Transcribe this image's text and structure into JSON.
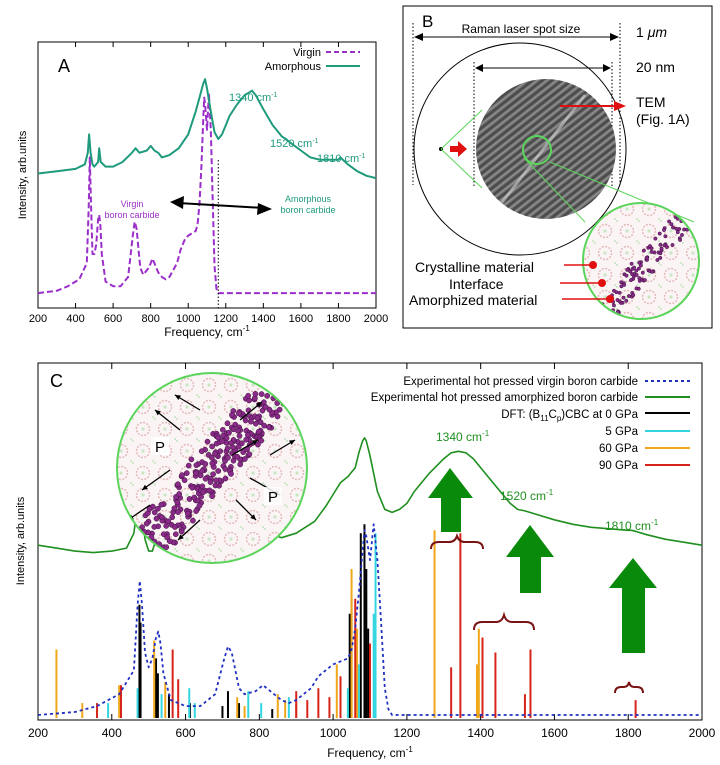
{
  "colors": {
    "virgin": "#9b2fc9",
    "amorphous": "#1e9a7c",
    "amorphized_c": "#1f8f1f",
    "dft0": "#000000",
    "dft5": "#33d6e0",
    "dft60": "#f0a71a",
    "dft90": "#d6241b",
    "arrow_green": "#0a8a0a",
    "pointer_red": "#e01010",
    "brace": "#7a1414"
  },
  "chart_data": [
    {
      "type": "line",
      "panel_label": "A",
      "xlabel": "Frequency, cm",
      "xlabel_sup": "-1",
      "ylabel": "Intensity, arb.units",
      "xlim": [
        200,
        2000
      ],
      "ylim": [
        0,
        1
      ],
      "xticks": [
        "200",
        "400",
        "600",
        "800",
        "1000",
        "1200",
        "1400",
        "1600",
        "1800",
        "2000"
      ],
      "series": [
        {
          "name": "Virgin",
          "style": "dashed",
          "x": [
            200,
            300,
            360,
            420,
            460,
            470,
            476,
            482,
            490,
            500,
            510,
            520,
            526,
            532,
            540,
            560,
            600,
            640,
            680,
            705,
            715,
            725,
            735,
            745,
            760,
            790,
            800,
            810,
            830,
            840,
            860,
            880,
            900,
            940,
            960,
            980,
            1000,
            1020,
            1040,
            1050,
            1060,
            1070,
            1080,
            1085,
            1090,
            1100,
            1110,
            1120,
            1130,
            1140,
            1150,
            1160,
            1180,
            1200,
            1300,
            1400,
            1600,
            1800,
            2000
          ],
          "y": [
            0.03,
            0.04,
            0.06,
            0.09,
            0.16,
            0.4,
            0.62,
            0.42,
            0.2,
            0.2,
            0.24,
            0.35,
            0.37,
            0.33,
            0.2,
            0.08,
            0.06,
            0.06,
            0.1,
            0.28,
            0.34,
            0.31,
            0.22,
            0.14,
            0.11,
            0.14,
            0.16,
            0.18,
            0.14,
            0.12,
            0.1,
            0.09,
            0.1,
            0.16,
            0.22,
            0.26,
            0.28,
            0.29,
            0.3,
            0.33,
            0.42,
            0.58,
            0.78,
            0.88,
            0.85,
            0.74,
            0.9,
            0.74,
            0.45,
            0.15,
            0.05,
            0.03,
            0.03,
            0.03,
            0.03,
            0.03,
            0.03,
            0.03,
            0.03
          ]
        },
        {
          "name": "Amorphous",
          "style": "solid",
          "x": [
            200,
            300,
            400,
            450,
            465,
            472,
            480,
            490,
            500,
            520,
            526,
            534,
            560,
            600,
            650,
            700,
            720,
            740,
            780,
            800,
            820,
            840,
            860,
            900,
            950,
            1000,
            1040,
            1060,
            1080,
            1090,
            1100,
            1120,
            1140,
            1160,
            1180,
            1200,
            1220,
            1260,
            1300,
            1320,
            1340,
            1360,
            1400,
            1450,
            1500,
            1520,
            1550,
            1600,
            1650,
            1700,
            1750,
            1800,
            1810,
            1850,
            1900,
            1950,
            2000
          ],
          "y": [
            0.55,
            0.56,
            0.57,
            0.59,
            0.64,
            0.72,
            0.64,
            0.59,
            0.58,
            0.6,
            0.66,
            0.6,
            0.58,
            0.58,
            0.6,
            0.64,
            0.66,
            0.64,
            0.65,
            0.67,
            0.65,
            0.64,
            0.62,
            0.63,
            0.66,
            0.72,
            0.82,
            0.88,
            0.94,
            0.96,
            0.92,
            0.82,
            0.73,
            0.7,
            0.72,
            0.76,
            0.8,
            0.85,
            0.89,
            0.9,
            0.91,
            0.89,
            0.83,
            0.76,
            0.71,
            0.7,
            0.68,
            0.65,
            0.62,
            0.61,
            0.61,
            0.61,
            0.62,
            0.59,
            0.56,
            0.54,
            0.53
          ]
        }
      ],
      "annotations": [
        {
          "text": "1340 cm",
          "sup": "-1"
        },
        {
          "text": "1520 cm",
          "sup": "-1"
        },
        {
          "text": "1810 cm",
          "sup": "-1"
        }
      ],
      "region_labels": {
        "left_line1": "Virgin",
        "left_line2": "boron carbide",
        "right_line1": "Amorphous",
        "right_line2": "boron carbide"
      },
      "divider_x": 1160
    },
    {
      "type": "line",
      "panel_label": "C",
      "xlabel": "Frequency, cm",
      "xlabel_sup": "-1",
      "ylabel": "Intensity, arb.units",
      "xlim": [
        200,
        2000
      ],
      "ylim": [
        0,
        1
      ],
      "xticks": [
        "200",
        "400",
        "600",
        "800",
        "1000",
        "1200",
        "1400",
        "1600",
        "1800",
        "2000"
      ],
      "legend": [
        {
          "label": "Experimental hot pressed virgin boron carbide",
          "key": "virgin",
          "style": "dotted"
        },
        {
          "label": "Experimental hot pressed amorphized boron carbide",
          "key": "amorphized_c",
          "style": "solid"
        },
        {
          "label_pre": "DFT: (B",
          "sub1": "11",
          "label_mid": "C",
          "sub2": "p",
          "label_post": ")CBC at 0 GPa",
          "key": "dft0",
          "style": "solid"
        },
        {
          "label": "5 GPa",
          "key": "dft5",
          "style": "solid"
        },
        {
          "label": "60 GPa",
          "key": "dft60",
          "style": "solid"
        },
        {
          "label": "90 GPa",
          "key": "dft90",
          "style": "solid"
        }
      ],
      "series": [
        {
          "name": "Experimental hot pressed amorphized boron carbide",
          "style": "solid",
          "x": [
            200,
            250,
            300,
            350,
            400,
            440,
            460,
            470,
            475,
            480,
            490,
            500,
            510,
            520,
            525,
            530,
            540,
            560,
            600,
            650,
            680,
            700,
            720,
            740,
            780,
            800,
            820,
            840,
            860,
            900,
            950,
            980,
            1000,
            1020,
            1040,
            1060,
            1070,
            1080,
            1085,
            1090,
            1100,
            1110,
            1120,
            1140,
            1160,
            1180,
            1200,
            1220,
            1260,
            1300,
            1320,
            1340,
            1360,
            1380,
            1400,
            1440,
            1480,
            1500,
            1520,
            1560,
            1600,
            1650,
            1700,
            1750,
            1800,
            1810,
            1850,
            1900,
            1950,
            2000
          ],
          "y": [
            0.58,
            0.57,
            0.56,
            0.555,
            0.56,
            0.57,
            0.62,
            0.72,
            0.76,
            0.7,
            0.6,
            0.56,
            0.56,
            0.6,
            0.66,
            0.62,
            0.57,
            0.555,
            0.56,
            0.57,
            0.59,
            0.62,
            0.635,
            0.62,
            0.62,
            0.63,
            0.62,
            0.615,
            0.605,
            0.62,
            0.66,
            0.71,
            0.75,
            0.79,
            0.81,
            0.84,
            0.89,
            0.93,
            0.94,
            0.93,
            0.88,
            0.82,
            0.76,
            0.7,
            0.69,
            0.7,
            0.72,
            0.76,
            0.82,
            0.87,
            0.89,
            0.895,
            0.89,
            0.87,
            0.84,
            0.78,
            0.72,
            0.7,
            0.695,
            0.68,
            0.665,
            0.65,
            0.64,
            0.635,
            0.63,
            0.63,
            0.615,
            0.6,
            0.59,
            0.58
          ]
        },
        {
          "name": "Experimental hot pressed virgin boron carbide",
          "style": "dotted",
          "x": [
            200,
            300,
            360,
            420,
            460,
            470,
            476,
            482,
            490,
            500,
            510,
            520,
            526,
            532,
            540,
            560,
            600,
            640,
            680,
            705,
            715,
            725,
            735,
            745,
            760,
            790,
            800,
            810,
            830,
            840,
            860,
            880,
            900,
            940,
            960,
            980,
            1000,
            1020,
            1040,
            1050,
            1060,
            1070,
            1080,
            1085,
            1090,
            1100,
            1110,
            1120,
            1130,
            1140,
            1150,
            1160,
            1180,
            1200,
            1300,
            1400,
            1600,
            1800,
            2000
          ],
          "y": [
            0.01,
            0.02,
            0.04,
            0.08,
            0.16,
            0.38,
            0.46,
            0.38,
            0.22,
            0.17,
            0.2,
            0.27,
            0.29,
            0.25,
            0.15,
            0.06,
            0.04,
            0.04,
            0.08,
            0.2,
            0.24,
            0.22,
            0.16,
            0.1,
            0.08,
            0.09,
            0.1,
            0.11,
            0.09,
            0.08,
            0.06,
            0.05,
            0.06,
            0.1,
            0.14,
            0.16,
            0.18,
            0.19,
            0.2,
            0.23,
            0.3,
            0.42,
            0.56,
            0.63,
            0.61,
            0.53,
            0.65,
            0.53,
            0.32,
            0.1,
            0.03,
            0.01,
            0.01,
            0.01,
            0.01,
            0.01,
            0.01,
            0.01,
            0.01
          ]
        },
        {
          "name": "DFT 0 GPa",
          "type": "stick",
          "x": [
            475,
            478,
            520,
            525,
            555,
            612,
            700,
            715,
            745,
            835,
            1045,
            1050,
            1075,
            1085,
            1090,
            1095
          ],
          "y": [
            0.38,
            0.32,
            0.2,
            0.15,
            0.08,
            0.05,
            0.04,
            0.09,
            0.05,
            0.03,
            0.35,
            0.4,
            0.62,
            0.65,
            0.5,
            0.3
          ]
        },
        {
          "name": "5 GPa",
          "type": "stick",
          "x": [
            390,
            470,
            535,
            610,
            625,
            770,
            805,
            880,
            1040,
            1070,
            1110,
            1115
          ],
          "y": [
            0.05,
            0.1,
            0.08,
            0.1,
            0.05,
            0.09,
            0.05,
            0.07,
            0.1,
            0.18,
            0.35,
            0.62
          ]
        },
        {
          "name": "60 GPa",
          "type": "stick",
          "x": [
            250,
            320,
            420,
            515,
            545,
            740,
            760,
            850,
            870,
            900,
            1010,
            1050,
            1065,
            1275,
            1390,
            1395
          ],
          "y": [
            0.23,
            0.05,
            0.11,
            0.26,
            0.12,
            0.07,
            0.04,
            0.08,
            0.06,
            0.05,
            0.18,
            0.5,
            0.3,
            0.63,
            0.18,
            0.3
          ]
        },
        {
          "name": "90 GPa",
          "type": "stick",
          "x": [
            360,
            425,
            565,
            580,
            900,
            930,
            960,
            990,
            1020,
            1060,
            1100,
            1320,
            1345,
            1405,
            1440,
            1520,
            1535,
            1820
          ],
          "y": [
            0.05,
            0.11,
            0.23,
            0.13,
            0.09,
            0.06,
            0.1,
            0.07,
            0.14,
            0.4,
            0.25,
            0.17,
            0.62,
            0.27,
            0.22,
            0.08,
            0.23,
            0.06
          ]
        }
      ],
      "annotations": [
        {
          "text": "1340 cm",
          "sup": "-1"
        },
        {
          "text": "1520 cm",
          "sup": "-1"
        },
        {
          "text": "1810 cm",
          "sup": "-1"
        }
      ],
      "inset_labels": [
        "P",
        "P"
      ]
    }
  ],
  "panel_b": {
    "label": "B",
    "spot_label": "Raman laser spot size",
    "scale_1um_num": "1 ",
    "scale_1um_unit": "μm",
    "scale_20nm": "20 nm",
    "tem_line1": "TEM",
    "tem_line2": "(Fig. 1A)",
    "label_crystalline": "Crystalline material",
    "label_interface": "Interface",
    "label_amorphized": "Amorphized material"
  }
}
